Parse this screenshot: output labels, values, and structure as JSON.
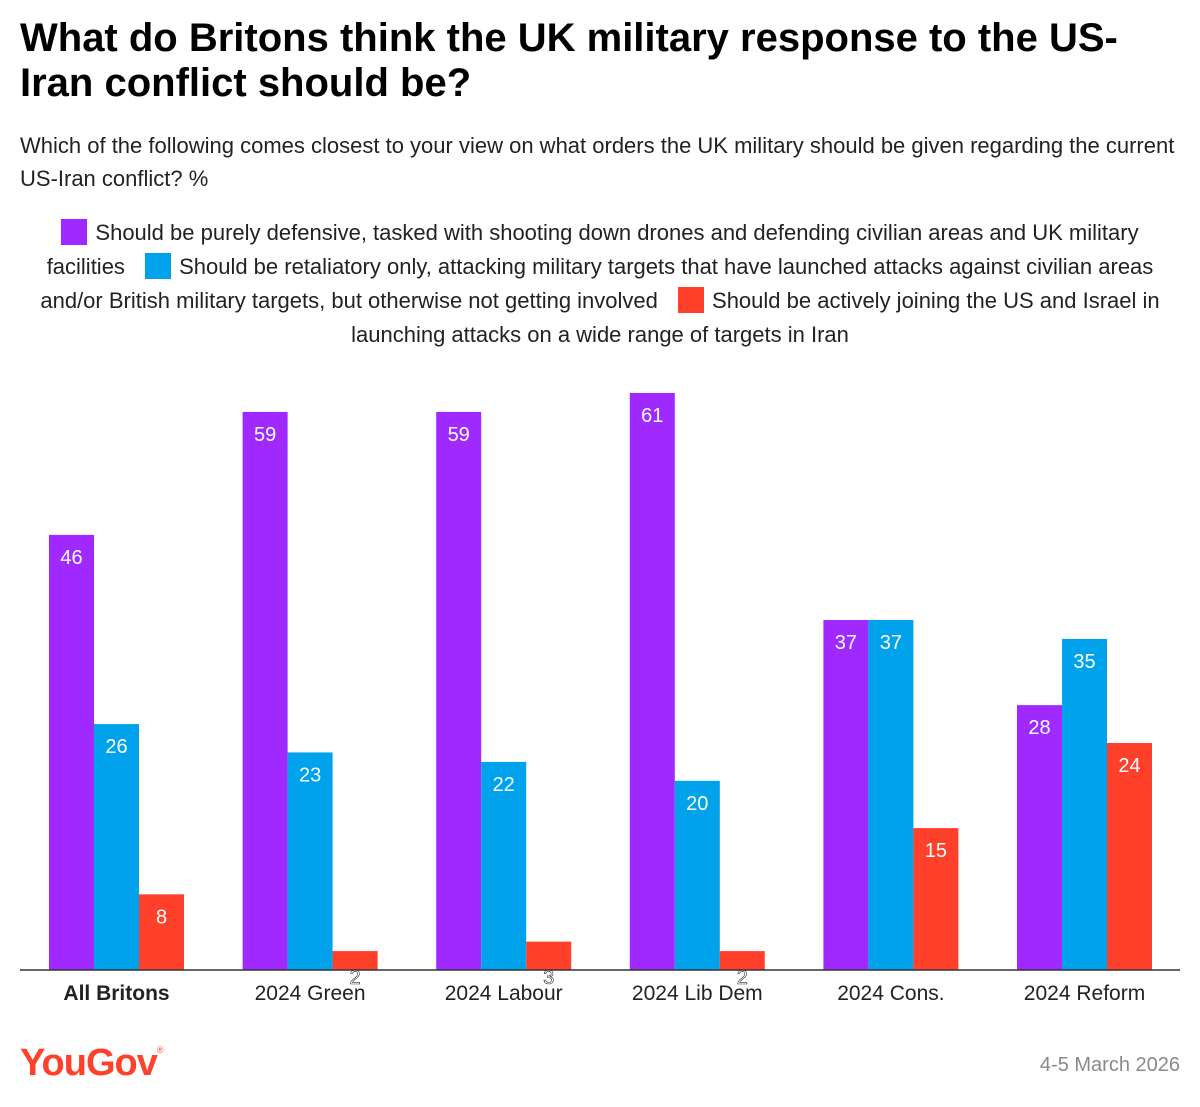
{
  "title": "What do Britons think the UK military response to the US-Iran conflict should be?",
  "subtitle": "Which of the following comes closest to your view on what orders the UK military should be given regarding the current US-Iran conflict? %",
  "footer": {
    "logo": "YouGov",
    "logo_mark": "®",
    "date": "4-5 March 2026"
  },
  "chart_data": {
    "type": "bar",
    "categories": [
      "All Britons",
      "2024 Green",
      "2024 Labour",
      "2024 Lib Dem",
      "2024 Cons.",
      "2024 Reform"
    ],
    "category_bold": [
      true,
      false,
      false,
      false,
      false,
      false
    ],
    "ylim": [
      0,
      61
    ],
    "grid": false,
    "legend_position": "top",
    "series": [
      {
        "name": "Should be purely defensive, tasked with shooting down drones and defending civilian areas and UK military facilities",
        "color": "#9f29ff",
        "values": [
          46,
          59,
          59,
          61,
          37,
          28
        ]
      },
      {
        "name": "Should be retaliatory only, attacking military targets that have launched attacks against civilian areas and/or British military targets, but otherwise not getting involved",
        "color": "#00a2eb",
        "values": [
          26,
          23,
          22,
          20,
          37,
          35
        ]
      },
      {
        "name": "Should be actively joining the US and Israel in launching attacks on a wide range of targets in Iran",
        "color": "#ff412c",
        "values": [
          8,
          2,
          3,
          2,
          15,
          24
        ]
      }
    ]
  }
}
